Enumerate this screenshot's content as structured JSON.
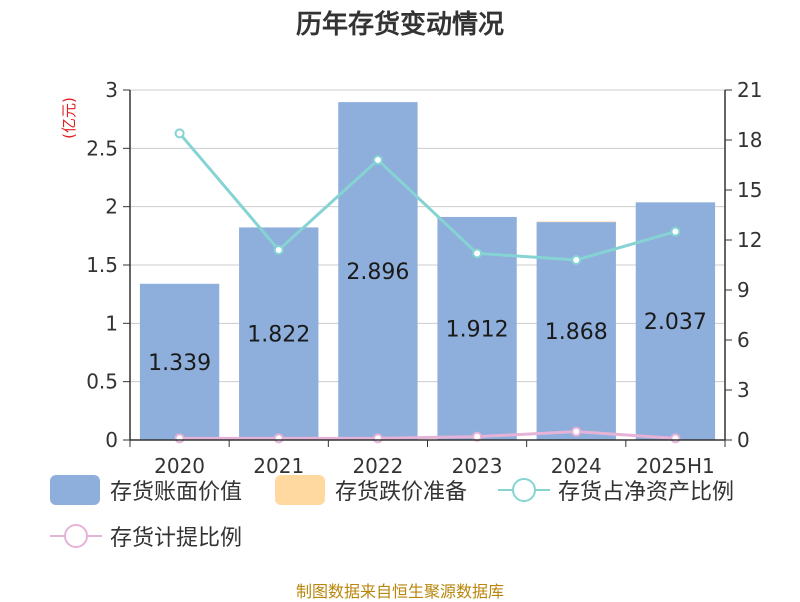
{
  "title": "历年存货变动情况",
  "source": "制图数据来自恒生聚源数据库",
  "colors": {
    "bar_book": "#8eaedb",
    "bar_reserve": "#ffd9a0",
    "line_ratio": "#86d3d3",
    "line_provision": "#e6b3d8"
  },
  "chart_data": {
    "type": "bar",
    "title": "历年存货变动情况",
    "categories": [
      "2020",
      "2021",
      "2022",
      "2023",
      "2024",
      "2025H1"
    ],
    "y_left_unit": "(亿元)",
    "y_left_ticks": [
      "0",
      "0.5",
      "1",
      "1.5",
      "2",
      "2.5",
      "3"
    ],
    "y_right_ticks": [
      "0",
      "3",
      "6",
      "9",
      "12",
      "15",
      "18",
      "21"
    ],
    "y_left_lim": [
      0,
      3
    ],
    "y_right_lim": [
      0,
      21
    ],
    "grid": true,
    "legend_position": "bottom",
    "bars": [
      {
        "name": "存货账面价值",
        "axis": "left",
        "values": [
          1.339,
          1.822,
          2.896,
          1.912,
          1.868,
          2.037
        ],
        "labels": [
          "1.339",
          "1.822",
          "2.896",
          "1.912",
          "1.868",
          "2.037"
        ]
      },
      {
        "name": "存货跌价准备",
        "axis": "left",
        "values": [
          0,
          0,
          0,
          0,
          0.005,
          0
        ]
      }
    ],
    "lines": [
      {
        "name": "存货占净资产比例",
        "axis": "right",
        "values": [
          18.4,
          11.4,
          16.8,
          11.2,
          10.8,
          12.5
        ]
      },
      {
        "name": "存货计提比例",
        "axis": "right",
        "values": [
          0.1,
          0.1,
          0.1,
          0.2,
          0.5,
          0.1
        ]
      }
    ]
  }
}
